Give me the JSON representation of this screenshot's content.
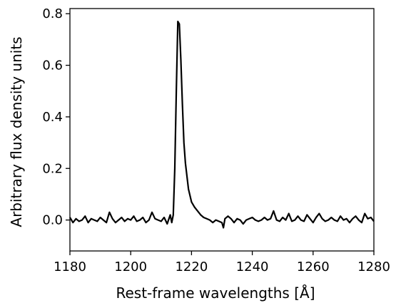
{
  "chart_data": {
    "type": "line",
    "xlabel": "Rest-frame wavelengths [Å]",
    "ylabel": "Arbitrary flux density units",
    "xlim": [
      1180,
      1280
    ],
    "ylim": [
      -0.12,
      0.82
    ],
    "xticks": [
      1180,
      1200,
      1220,
      1240,
      1260,
      1280
    ],
    "yticks": [
      0.0,
      0.2,
      0.4,
      0.6,
      0.8
    ],
    "xtick_labels": [
      "1180",
      "1200",
      "1220",
      "1240",
      "1260",
      "1280"
    ],
    "ytick_labels": [
      "0.0",
      "0.2",
      "0.4",
      "0.6",
      "0.8"
    ],
    "grid": false,
    "legend": "none",
    "line_color": "#000000",
    "series": [
      {
        "x": [
          1180.0,
          1181.0,
          1182.0,
          1183.0,
          1184.0,
          1185.0,
          1186.0,
          1187.0,
          1188.0,
          1189.0,
          1190.0,
          1191.0,
          1192.0,
          1193.0,
          1194.0,
          1195.0,
          1196.0,
          1197.0,
          1198.0,
          1199.0,
          1200.0,
          1201.0,
          1202.0,
          1203.0,
          1204.0,
          1205.0,
          1206.0,
          1207.0,
          1208.0,
          1209.0,
          1210.0,
          1211.0,
          1212.0,
          1213.0,
          1213.5,
          1214.0,
          1214.5,
          1215.0,
          1215.5,
          1216.0,
          1216.5,
          1217.0,
          1217.5,
          1218.0,
          1219.0,
          1220.0,
          1221.0,
          1222.0,
          1223.0,
          1224.0,
          1225.0,
          1226.0,
          1227.0,
          1228.0,
          1229.0,
          1230.0,
          1230.5,
          1231.0,
          1232.0,
          1233.0,
          1234.0,
          1235.0,
          1236.0,
          1237.0,
          1238.0,
          1239.0,
          1240.0,
          1241.0,
          1242.0,
          1243.0,
          1244.0,
          1245.0,
          1246.0,
          1247.0,
          1248.0,
          1249.0,
          1250.0,
          1251.0,
          1252.0,
          1253.0,
          1254.0,
          1255.0,
          1256.0,
          1257.0,
          1258.0,
          1259.0,
          1260.0,
          1261.0,
          1262.0,
          1263.0,
          1264.0,
          1265.0,
          1266.0,
          1267.0,
          1268.0,
          1269.0,
          1270.0,
          1271.0,
          1272.0,
          1273.0,
          1274.0,
          1275.0,
          1276.0,
          1277.0,
          1278.0,
          1279.0,
          1280.0
        ],
        "values": [
          0.01,
          -0.01,
          0.005,
          -0.005,
          0.0,
          0.015,
          -0.01,
          0.005,
          0.0,
          -0.005,
          0.01,
          0.0,
          -0.01,
          0.03,
          0.005,
          -0.01,
          0.0,
          0.01,
          -0.005,
          0.005,
          0.0,
          0.015,
          -0.005,
          0.0,
          0.01,
          -0.01,
          0.0,
          0.03,
          0.005,
          0.0,
          -0.005,
          0.01,
          -0.015,
          0.02,
          -0.01,
          0.02,
          0.2,
          0.5,
          0.77,
          0.76,
          0.62,
          0.45,
          0.3,
          0.22,
          0.12,
          0.07,
          0.05,
          0.035,
          0.02,
          0.01,
          0.005,
          0.0,
          -0.01,
          0.0,
          -0.005,
          -0.01,
          -0.03,
          0.005,
          0.015,
          0.005,
          -0.01,
          0.005,
          0.0,
          -0.015,
          0.0,
          0.005,
          0.01,
          0.0,
          -0.005,
          0.0,
          0.01,
          0.0,
          0.005,
          0.035,
          0.0,
          -0.005,
          0.01,
          0.0,
          0.025,
          -0.005,
          0.0,
          0.015,
          0.0,
          -0.005,
          0.02,
          0.005,
          -0.01,
          0.01,
          0.025,
          0.005,
          -0.005,
          0.0,
          0.01,
          0.0,
          -0.005,
          0.015,
          0.0,
          0.005,
          -0.01,
          0.005,
          0.015,
          0.0,
          -0.01,
          0.025,
          0.005,
          0.01,
          -0.005
        ]
      }
    ]
  }
}
